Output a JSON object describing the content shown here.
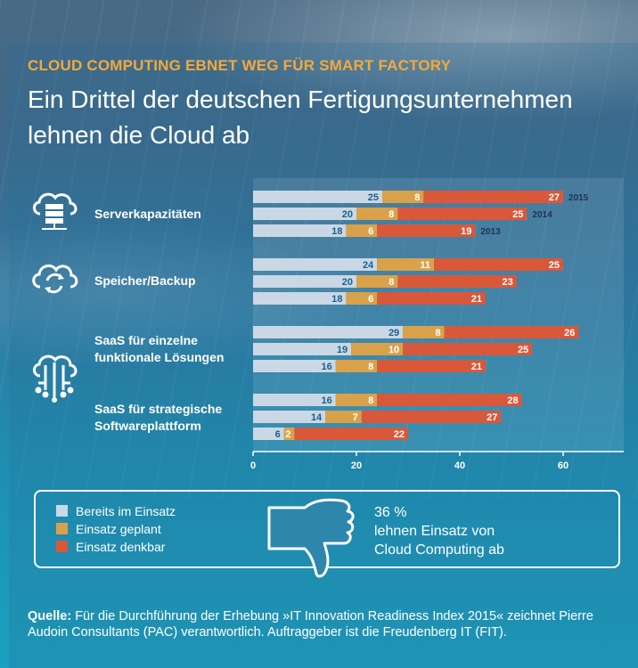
{
  "header": {
    "subtitle": "CLOUD COMPUTING EBNET WEG FÜR SMART FACTORY",
    "title_line1": "Ein Drittel der deutschen Fertigungsunternehmen",
    "title_line2": "lehnen die Cloud ab"
  },
  "categories": [
    {
      "label_line1": "Serverkapazitäten",
      "label_line2": "",
      "icon": "cloud-server-icon"
    },
    {
      "label_line1": "Speicher/Backup",
      "label_line2": "",
      "icon": "cloud-sync-icon"
    },
    {
      "label_line1": "SaaS für einzelne",
      "label_line2": "funktionale Lösungen",
      "icon": "cloud-network-icon"
    },
    {
      "label_line1": "SaaS für strategische",
      "label_line2": "Softwareplattform",
      "icon": "cloud-network-icon"
    }
  ],
  "chart_data": {
    "type": "bar",
    "orientation": "horizontal",
    "stacked": true,
    "title": "Ein Drittel der deutschen Fertigungsunternehmen lehnen die Cloud ab",
    "categories": [
      "Serverkapazitäten",
      "Speicher/Backup",
      "SaaS für einzelne funktionale Lösungen",
      "SaaS für strategische Softwareplattform"
    ],
    "years": [
      "2015",
      "2014",
      "2013"
    ],
    "year_labels_shown_for": "Serverkapazitäten",
    "series": [
      {
        "name": "Bereits im Einsatz",
        "color": "#c9d8e4",
        "values": [
          [
            25,
            20,
            18
          ],
          [
            24,
            20,
            18
          ],
          [
            29,
            19,
            16
          ],
          [
            16,
            14,
            6
          ]
        ]
      },
      {
        "name": "Einsatz geplant",
        "color": "#d9a24a",
        "values": [
          [
            8,
            8,
            6
          ],
          [
            11,
            8,
            6
          ],
          [
            8,
            10,
            8
          ],
          [
            8,
            7,
            2
          ]
        ]
      },
      {
        "name": "Einsatz denkbar",
        "color": "#d9583a",
        "values": [
          [
            27,
            25,
            19
          ],
          [
            25,
            23,
            21
          ],
          [
            26,
            25,
            21
          ],
          [
            28,
            27,
            22
          ]
        ]
      }
    ],
    "xticks": [
      0,
      20,
      40,
      60
    ],
    "xlim": [
      0,
      68
    ],
    "xlabel": "",
    "ylabel": "",
    "legend_position": "bottom-left"
  },
  "legend": [
    {
      "label": "Bereits im Einsatz",
      "color": "#c9d8e4"
    },
    {
      "label": "Einsatz geplant",
      "color": "#d9a24a"
    },
    {
      "label": "Einsatz denkbar",
      "color": "#d9583a"
    }
  ],
  "stat": {
    "value": "36 %",
    "line1": "lehnen Einsatz von",
    "line2": "Cloud Computing ab"
  },
  "source": {
    "label": "Quelle:",
    "text": "Für die Durchführung der Erhebung »IT Innovation Readiness Index 2015« zeichnet Pierre Audoin Consultants (PAC) verantwortlich. Auftraggeber ist die Freudenberg IT (FIT)."
  }
}
